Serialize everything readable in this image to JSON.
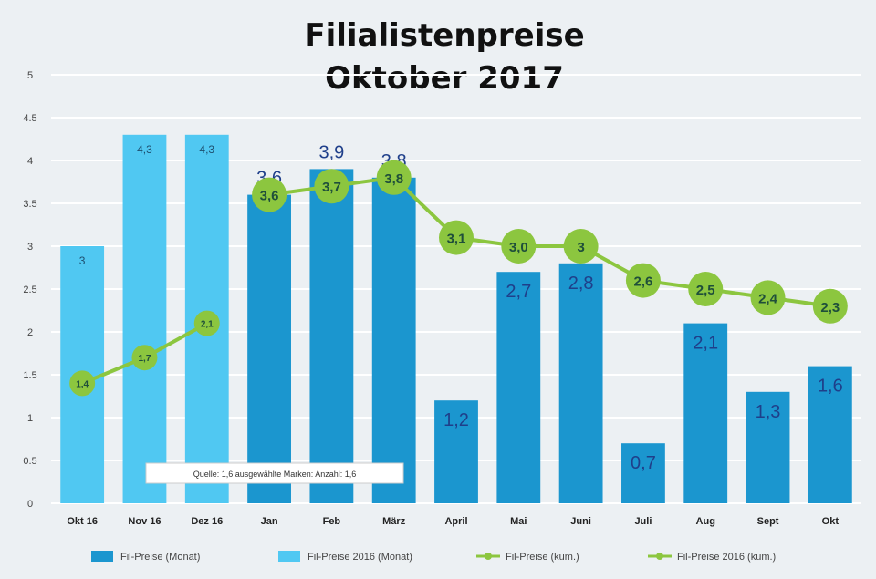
{
  "chart_data": {
    "type": "bar",
    "title": [
      "Filialistenpreise",
      "Oktober 2017"
    ],
    "xlabel": "",
    "ylabel": "",
    "ylim": [
      0,
      5
    ],
    "y_ticks": [
      "0",
      "0.5",
      "1",
      "1.5",
      "2",
      "2.5",
      "3",
      "3.5",
      "4",
      "4.5",
      "5"
    ],
    "categories": [
      "Okt 16",
      "Nov 16",
      "Dez 16",
      "Jan",
      "Feb",
      "März",
      "April",
      "Mai",
      "Juni",
      "Juli",
      "Aug",
      "Sept",
      "Okt"
    ],
    "grid": true,
    "legend_position": "bottom",
    "series": [
      {
        "name": "Fil-Preise (Monat)",
        "kind": "bar",
        "color": "#1b96cf",
        "values": [
          null,
          null,
          null,
          3.6,
          3.9,
          3.8,
          1.2,
          2.7,
          2.8,
          0.7,
          2.1,
          1.3,
          1.6
        ],
        "labels": [
          "",
          "",
          "",
          "3,6",
          "3,9",
          "3,8",
          "1,2",
          "2,7",
          "2,8",
          "0,7",
          "2,1",
          "1,3",
          "1,6"
        ]
      },
      {
        "name": "Fil-Preise 2016 (Monat)",
        "kind": "bar",
        "color": "#50c8f2",
        "values": [
          3,
          4.3,
          4.3,
          null,
          null,
          null,
          null,
          null,
          null,
          null,
          null,
          null,
          null
        ],
        "labels": [
          "3",
          "4,3",
          "4,3",
          "",
          "",
          "",
          "",
          "",
          "",
          "",
          "",
          "",
          ""
        ]
      },
      {
        "name": "Fil-Preise (kum.)",
        "kind": "line",
        "color": "#8cc63f",
        "values": [
          null,
          null,
          null,
          3.6,
          3.7,
          3.8,
          3.1,
          3.0,
          3.0,
          2.6,
          2.5,
          2.4,
          2.3
        ],
        "labels": [
          "",
          "",
          "",
          "3,6",
          "3,7",
          "3,8",
          "3,1",
          "3,0",
          "3",
          "2,6",
          "2,5",
          "2,4",
          "2,3"
        ]
      },
      {
        "name": "Fil-Preise 2016 (kum.)",
        "kind": "line",
        "color": "#8cc63f",
        "values": [
          1.4,
          1.7,
          2.1,
          null,
          null,
          null,
          null,
          null,
          null,
          null,
          null,
          null,
          null
        ],
        "labels": [
          "1,4",
          "1,7",
          "2,1",
          "",
          "",
          "",
          "",
          "",
          "",
          "",
          "",
          "",
          ""
        ]
      }
    ],
    "annotation": "Quelle: 1,6 ausgewählte Marken: Anzahl: 1,6"
  }
}
